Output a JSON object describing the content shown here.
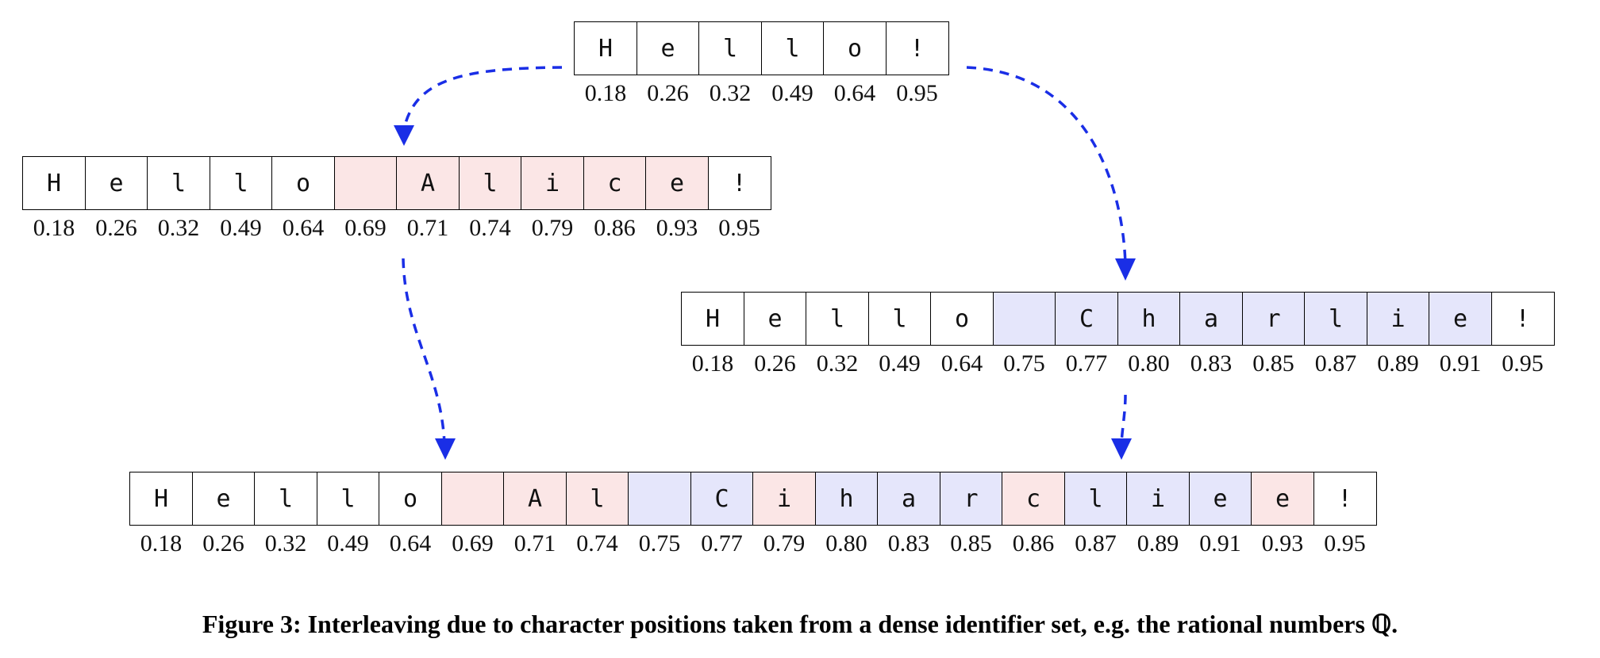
{
  "sequences": {
    "original": {
      "chars": [
        "H",
        "e",
        "l",
        "l",
        "o",
        "!"
      ],
      "positions": [
        "0.18",
        "0.26",
        "0.32",
        "0.49",
        "0.64",
        "0.95"
      ],
      "authors": [
        "",
        "",
        "",
        "",
        "",
        ""
      ]
    },
    "alice": {
      "chars": [
        "H",
        "e",
        "l",
        "l",
        "o",
        " ",
        "A",
        "l",
        "i",
        "c",
        "e",
        "!"
      ],
      "positions": [
        "0.18",
        "0.26",
        "0.32",
        "0.49",
        "0.64",
        "0.69",
        "0.71",
        "0.74",
        "0.79",
        "0.86",
        "0.93",
        "0.95"
      ],
      "authors": [
        "",
        "",
        "",
        "",
        "",
        "alice",
        "alice",
        "alice",
        "alice",
        "alice",
        "alice",
        ""
      ]
    },
    "charlie": {
      "chars": [
        "H",
        "e",
        "l",
        "l",
        "o",
        " ",
        "C",
        "h",
        "a",
        "r",
        "l",
        "i",
        "e",
        "!"
      ],
      "positions": [
        "0.18",
        "0.26",
        "0.32",
        "0.49",
        "0.64",
        "0.75",
        "0.77",
        "0.80",
        "0.83",
        "0.85",
        "0.87",
        "0.89",
        "0.91",
        "0.95"
      ],
      "authors": [
        "",
        "",
        "",
        "",
        "",
        "charlie",
        "charlie",
        "charlie",
        "charlie",
        "charlie",
        "charlie",
        "charlie",
        "charlie",
        ""
      ]
    },
    "merged": {
      "chars": [
        "H",
        "e",
        "l",
        "l",
        "o",
        " ",
        "A",
        "l",
        " ",
        "C",
        "i",
        "h",
        "a",
        "r",
        "c",
        "l",
        "i",
        "e",
        "e",
        "!"
      ],
      "positions": [
        "0.18",
        "0.26",
        "0.32",
        "0.49",
        "0.64",
        "0.69",
        "0.71",
        "0.74",
        "0.75",
        "0.77",
        "0.79",
        "0.80",
        "0.83",
        "0.85",
        "0.86",
        "0.87",
        "0.89",
        "0.91",
        "0.93",
        "0.95"
      ],
      "authors": [
        "",
        "",
        "",
        "",
        "",
        "alice",
        "alice",
        "alice",
        "charlie",
        "charlie",
        "alice",
        "charlie",
        "charlie",
        "charlie",
        "alice",
        "charlie",
        "charlie",
        "charlie",
        "alice",
        ""
      ]
    }
  },
  "colors": {
    "alice_fill": "#fbe6e6",
    "charlie_fill": "#e5e6fb",
    "arrow": "#1a2ee6"
  },
  "caption": "Figure 3: Interleaving due to character positions taken from a dense identifier set, e.g. the rational numbers ℚ."
}
